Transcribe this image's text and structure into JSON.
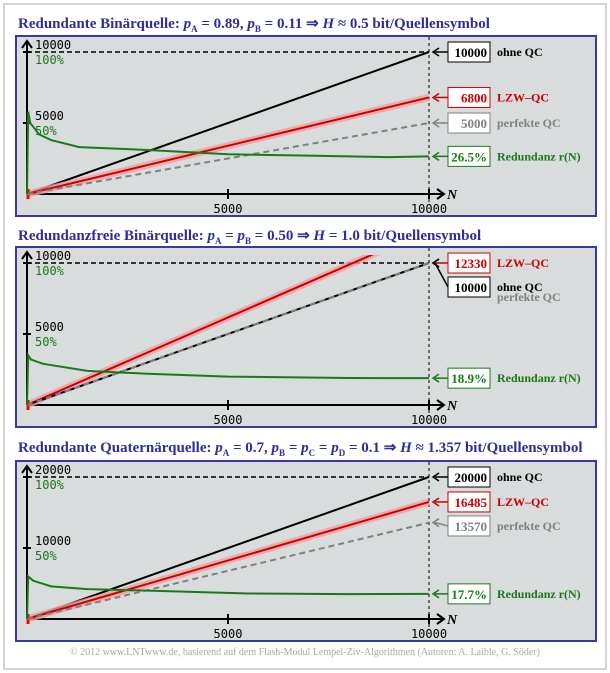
{
  "chart_data": [
    {
      "type": "line",
      "title": "Redundante Binärquelle: pA = 0.89, pB = 0.11 ⇒ H ≈ 0.5 bit/Quellensymbol",
      "title_parts": [
        "Redundante Binärquelle: ",
        "p",
        "A",
        " = 0.89, ",
        "p",
        "B",
        " = 0.11 ⇒ ",
        "H",
        " ≈ 0.5 bit/Quellensymbol"
      ],
      "xlabel": "N",
      "xlim": [
        0,
        10000
      ],
      "ylim": [
        0,
        10000
      ],
      "xticks": [
        "5000",
        "10000"
      ],
      "yticks": [
        "5000",
        "10000"
      ],
      "pct_ticks": [
        "50%",
        "100%"
      ],
      "series": [
        {
          "name": "ohne QC",
          "value": "10000",
          "end": 10000,
          "color": "#000000"
        },
        {
          "name": "LZW–QC",
          "value": "6800",
          "end": 6800,
          "color": "#cc0000"
        },
        {
          "name": "perfekte QC",
          "value": "5000",
          "end": 5000,
          "color": "#808080"
        },
        {
          "name": "Redundanz r(N)",
          "value": "26.5%",
          "color": "#1a7a1a",
          "r_points": [
            [
              0,
              0
            ],
            [
              30,
              58
            ],
            [
              80,
              50
            ],
            [
              300,
              42
            ],
            [
              600,
              38
            ],
            [
              1300,
              33
            ],
            [
              3000,
              31
            ],
            [
              5000,
              28
            ],
            [
              7000,
              27
            ],
            [
              9000,
              26
            ],
            [
              10000,
              26.5
            ]
          ]
        }
      ]
    },
    {
      "type": "line",
      "title": "Redundanzfreie Binärquelle: pA = pB = 0.50 ⇒ H = 1.0 bit/Quellensymbol",
      "title_parts": [
        "Redundanzfreie Binärquelle: ",
        "p",
        "A",
        " = ",
        "p",
        "B",
        " = 0.50 ⇒ ",
        "H",
        " = 1.0 bit/Quellensymbol"
      ],
      "xlabel": "N",
      "xlim": [
        0,
        10000
      ],
      "ylim": [
        0,
        10000
      ],
      "xticks": [
        "5000",
        "10000"
      ],
      "yticks": [
        "5000",
        "10000"
      ],
      "pct_ticks": [
        "50%",
        "100%"
      ],
      "series": [
        {
          "name": "LZW–QC",
          "value": "12330",
          "end": 12330,
          "color": "#cc0000"
        },
        {
          "name": "ohne QC",
          "value": "10000",
          "end": 10000,
          "color": "#000000"
        },
        {
          "name": "perfekte QC",
          "value": "",
          "end": 10000,
          "color": "#808080"
        },
        {
          "name": "Redundanz r(N)",
          "value": "18.9%",
          "color": "#1a7a1a",
          "r_points": [
            [
              0,
              0
            ],
            [
              30,
              35
            ],
            [
              100,
              32
            ],
            [
              400,
              29
            ],
            [
              1500,
              24
            ],
            [
              3000,
              22
            ],
            [
              5000,
              20
            ],
            [
              8000,
              19
            ],
            [
              10000,
              18.9
            ]
          ]
        }
      ]
    },
    {
      "type": "line",
      "title": "Redundante Quaternärquelle: pA = 0.7, pB = pC = pD = 0.1 ⇒ H ≈ 1.357 bit/Quellensymbol",
      "title_parts": [
        "Redundante Quaternärquelle: ",
        "p",
        "A",
        " = 0.7, ",
        "p",
        "B",
        " = ",
        "p",
        "C",
        " = ",
        "p",
        "D",
        " = 0.1 ⇒ ",
        "H",
        " ≈ 1.357 bit/Quellensymbol"
      ],
      "xlabel": "N",
      "xlim": [
        0,
        10000
      ],
      "ylim": [
        0,
        20000
      ],
      "xticks": [
        "5000",
        "10000"
      ],
      "yticks": [
        "10000",
        "20000"
      ],
      "pct_ticks": [
        "50%",
        "100%"
      ],
      "series": [
        {
          "name": "ohne QC",
          "value": "20000",
          "end": 20000,
          "color": "#000000"
        },
        {
          "name": "LZW–QC",
          "value": "16485",
          "end": 16485,
          "color": "#cc0000"
        },
        {
          "name": "perfekte QC",
          "value": "13570",
          "end": 13570,
          "color": "#808080"
        },
        {
          "name": "Redundanz r(N)",
          "value": "17.7%",
          "color": "#1a7a1a",
          "r_points": [
            [
              0,
              0
            ],
            [
              30,
              30
            ],
            [
              150,
              27
            ],
            [
              600,
              23
            ],
            [
              1500,
              21
            ],
            [
              3000,
              20
            ],
            [
              5500,
              18
            ],
            [
              8000,
              17.5
            ],
            [
              10000,
              17.7
            ]
          ]
        }
      ]
    }
  ],
  "footer": "© 2012 www.LNTwww.de, basierend auf dem Flash-Modul Lempel-Ziv-Algorithmen (Autoren: A. Laible, G. Söder)"
}
